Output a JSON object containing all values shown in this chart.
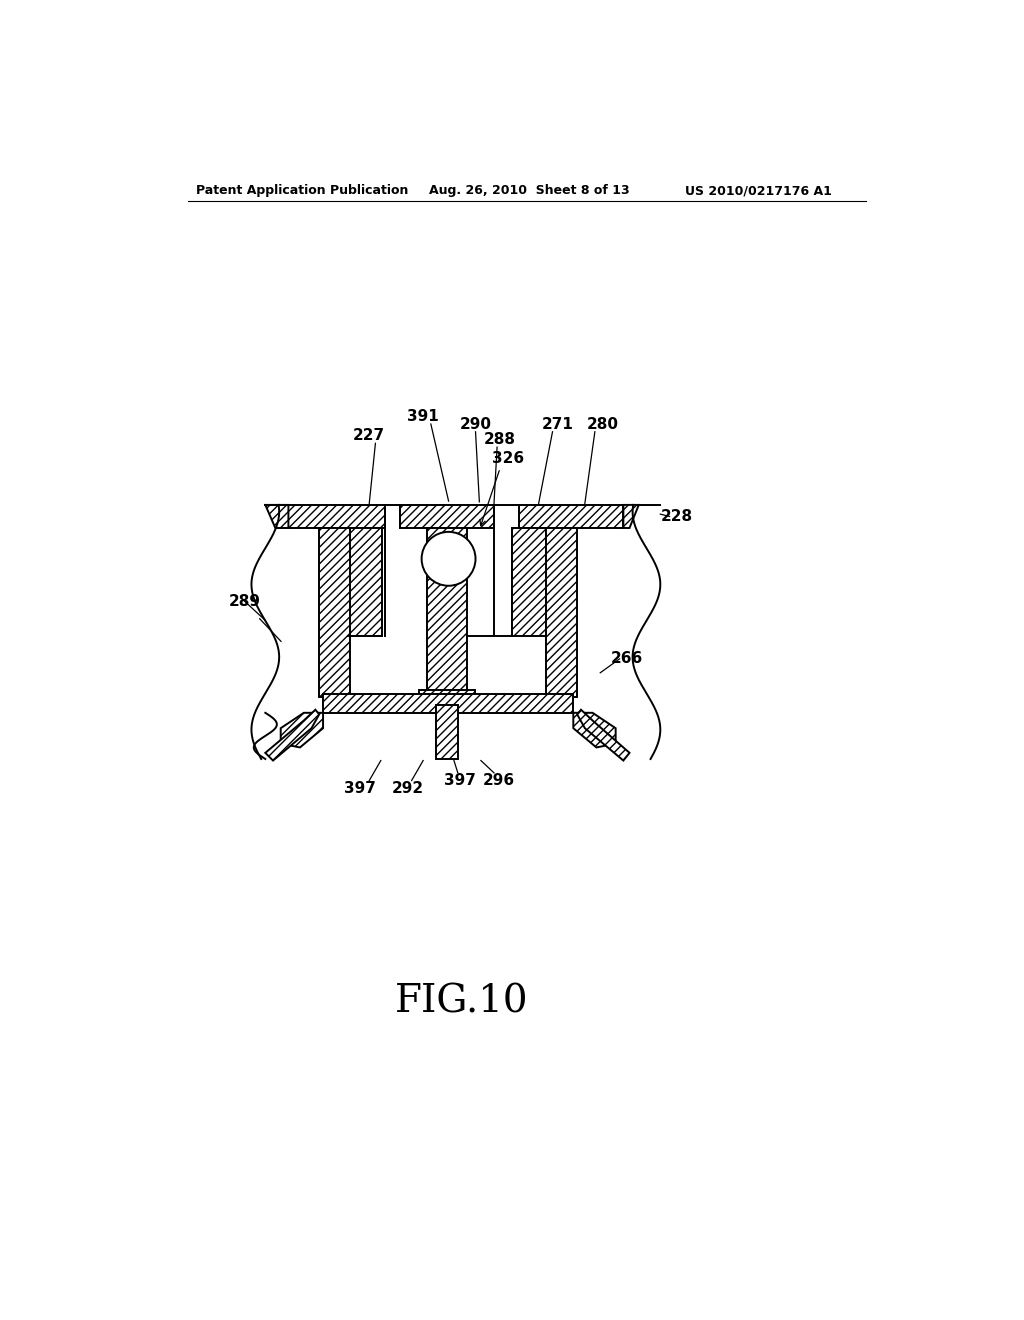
{
  "title": "FIG.10",
  "header_left": "Patent Application Publication",
  "header_mid": "Aug. 26, 2010  Sheet 8 of 13",
  "header_right": "US 2010/0217176 A1",
  "bg": "#ffffff",
  "lw": 1.4,
  "hatch": "////",
  "fs_label": 11,
  "fs_header": 9,
  "fs_title": 28
}
